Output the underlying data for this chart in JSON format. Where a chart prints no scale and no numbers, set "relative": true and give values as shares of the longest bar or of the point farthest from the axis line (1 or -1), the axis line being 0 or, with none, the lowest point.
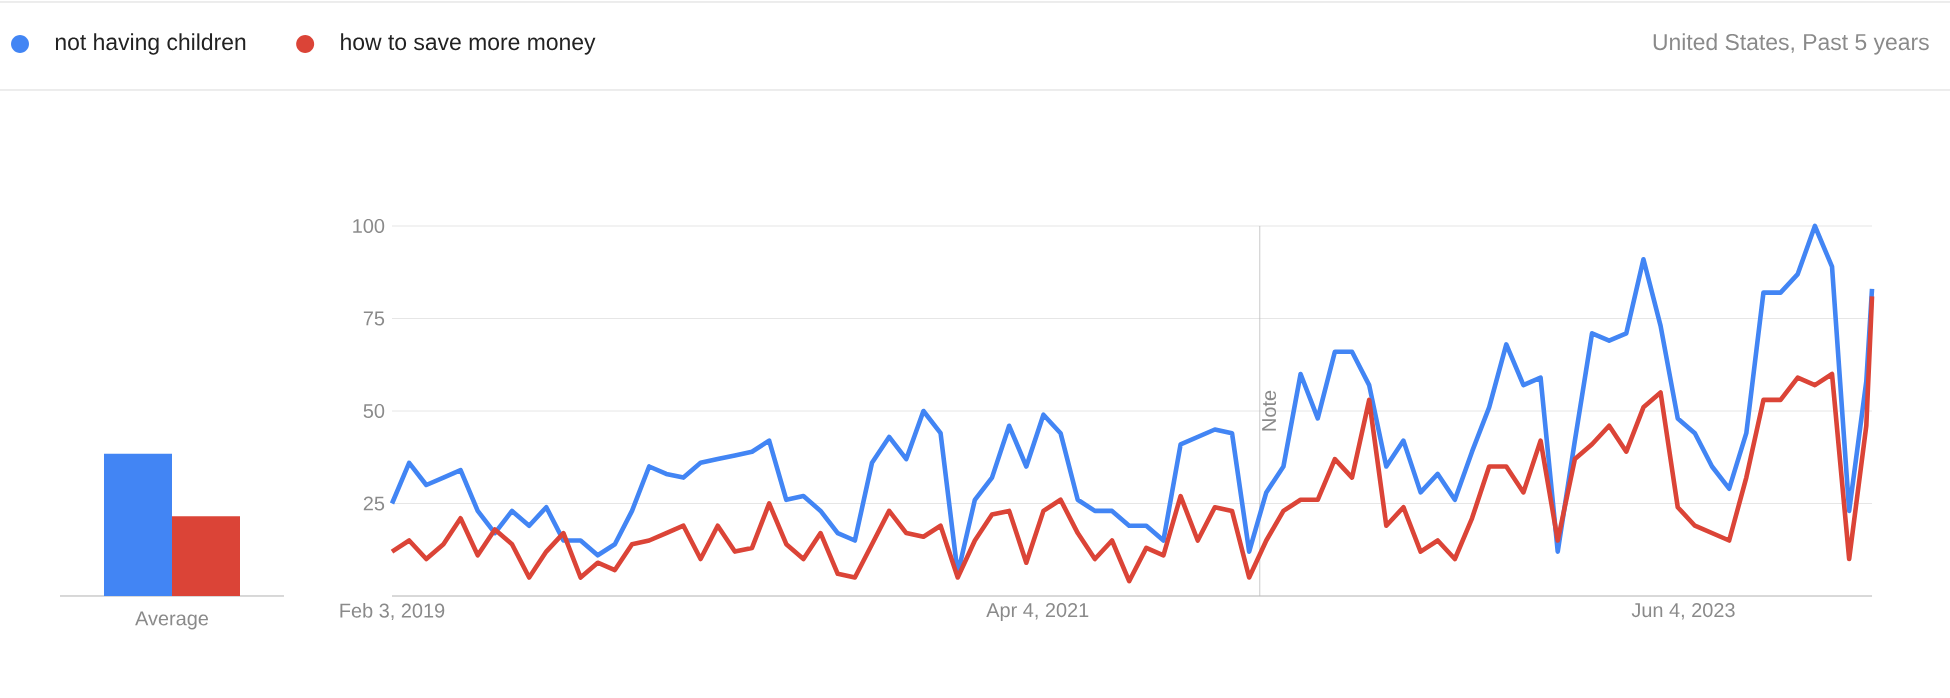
{
  "chart_data": [
    {
      "type": "bar",
      "relative": true,
      "categories": [
        "Average"
      ],
      "series": [
        {
          "color": "#4285f4",
          "values": [
            1
          ]
        },
        {
          "color": "#db4437",
          "values": [
            0.56
          ]
        }
      ]
    },
    {
      "type": "line",
      "annotations": [
        "United States, Past 5 years"
      ],
      "legend": "top left",
      "grid": "y",
      "x": [
        "2019-02-03",
        "2019-02-24",
        "2019-03-17",
        "2019-04-07",
        "2019-04-28",
        "2019-05-19",
        "2019-06-09",
        "2019-06-30",
        "2019-07-21",
        "2019-08-11",
        "2019-09-01",
        "2019-09-22",
        "2019-10-13",
        "2019-11-03",
        "2019-11-24",
        "2019-12-15",
        "2020-01-05",
        "2020-01-26",
        "2020-02-16",
        "2020-03-08",
        "2020-03-29",
        "2020-04-19",
        "2020-05-10",
        "2020-05-31",
        "2020-06-21",
        "2020-07-12",
        "2020-08-02",
        "2020-08-23",
        "2020-09-13",
        "2020-10-04",
        "2020-10-25",
        "2020-11-15",
        "2020-12-06",
        "2020-12-27",
        "2021-01-17",
        "2021-02-07",
        "2021-02-28",
        "2021-03-21",
        "2021-04-11",
        "2021-05-02",
        "2021-05-23",
        "2021-06-13",
        "2021-07-04",
        "2021-07-25",
        "2021-08-15",
        "2021-09-05",
        "2021-09-26",
        "2021-10-17",
        "2021-11-07",
        "2021-11-28",
        "2021-12-19",
        "2022-01-09",
        "2022-01-30",
        "2022-02-20",
        "2022-03-13",
        "2022-04-03",
        "2022-04-24",
        "2022-05-15",
        "2022-06-05",
        "2022-06-26",
        "2022-07-17",
        "2022-08-07",
        "2022-08-28",
        "2022-09-18",
        "2022-10-09",
        "2022-10-30",
        "2022-11-20",
        "2022-12-11",
        "2023-01-01",
        "2023-01-22",
        "2023-02-12",
        "2023-03-05",
        "2023-03-26",
        "2023-04-16",
        "2023-05-07",
        "2023-05-28",
        "2023-06-18",
        "2023-07-09",
        "2023-07-30",
        "2023-08-20",
        "2023-09-10",
        "2023-10-01",
        "2023-10-22",
        "2023-11-12",
        "2023-12-03",
        "2023-12-24",
        "2024-01-14",
        "2024-01-21"
      ],
      "series": [
        {
          "name": "not having children",
          "color": "#4285f4",
          "values": [
            25,
            36,
            30,
            32,
            34,
            23,
            17,
            23,
            19,
            24,
            15,
            15,
            11,
            14,
            23,
            35,
            33,
            32,
            36,
            37,
            38,
            39,
            42,
            26,
            27,
            23,
            17,
            15,
            36,
            43,
            37,
            50,
            44,
            6,
            26,
            32,
            46,
            35,
            49,
            44,
            26,
            23,
            23,
            19,
            19,
            15,
            41,
            43,
            45,
            44,
            12,
            28,
            35,
            60,
            48,
            66,
            66,
            57,
            35,
            42,
            28,
            33,
            26,
            39,
            51,
            68,
            57,
            59,
            12,
            42,
            71,
            69,
            71,
            91,
            73,
            48,
            44,
            35,
            29,
            44,
            82,
            82,
            87,
            100,
            89,
            23,
            58,
            83
          ]
        },
        {
          "name": "how to save more money",
          "color": "#db4437",
          "values": [
            12,
            15,
            10,
            14,
            21,
            11,
            18,
            14,
            5,
            12,
            17,
            5,
            9,
            7,
            14,
            15,
            17,
            19,
            10,
            19,
            12,
            13,
            25,
            14,
            10,
            17,
            6,
            5,
            14,
            23,
            17,
            16,
            19,
            5,
            15,
            22,
            23,
            9,
            23,
            26,
            17,
            10,
            15,
            4,
            13,
            11,
            27,
            15,
            24,
            23,
            5,
            15,
            23,
            26,
            26,
            37,
            32,
            53,
            19,
            24,
            12,
            15,
            10,
            21,
            35,
            35,
            28,
            42,
            15,
            37,
            41,
            46,
            39,
            51,
            55,
            24,
            19,
            17,
            15,
            32,
            53,
            53,
            59,
            57,
            60,
            10,
            46,
            81
          ]
        }
      ],
      "xlim": [
        "2019-02-03",
        "2024-01-21"
      ],
      "xticks": [
        {
          "value": "2019-02-03",
          "label": "Feb 3, 2019"
        },
        {
          "value": "2021-04-04",
          "label": "Apr 4, 2021"
        },
        {
          "value": "2023-06-04",
          "label": "Jun 4, 2023"
        }
      ],
      "ylim": [
        0,
        100
      ],
      "yticks": [
        25,
        50,
        75,
        100
      ],
      "ref_lines": [
        {
          "axis": "x",
          "value": "2022-01-01",
          "label": "Note"
        }
      ]
    }
  ]
}
